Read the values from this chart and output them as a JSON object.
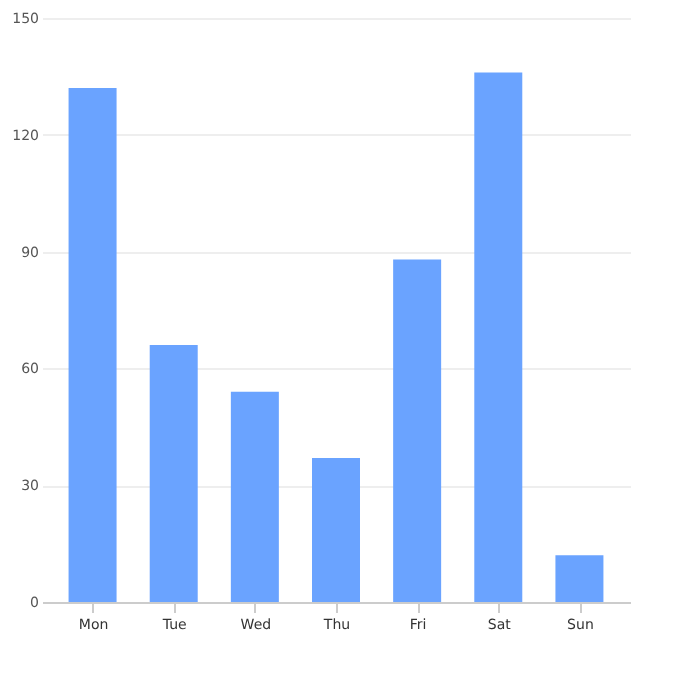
{
  "chart_data": {
    "type": "bar",
    "categories": [
      "Mon",
      "Tue",
      "Wed",
      "Thu",
      "Fri",
      "Sat",
      "Sun"
    ],
    "values": [
      132,
      66,
      54,
      37,
      88,
      136,
      12
    ],
    "color": "#6aa3ff",
    "ylim": [
      0,
      150
    ],
    "yticks": [
      0,
      30,
      60,
      90,
      120,
      150
    ],
    "grid": "y"
  }
}
